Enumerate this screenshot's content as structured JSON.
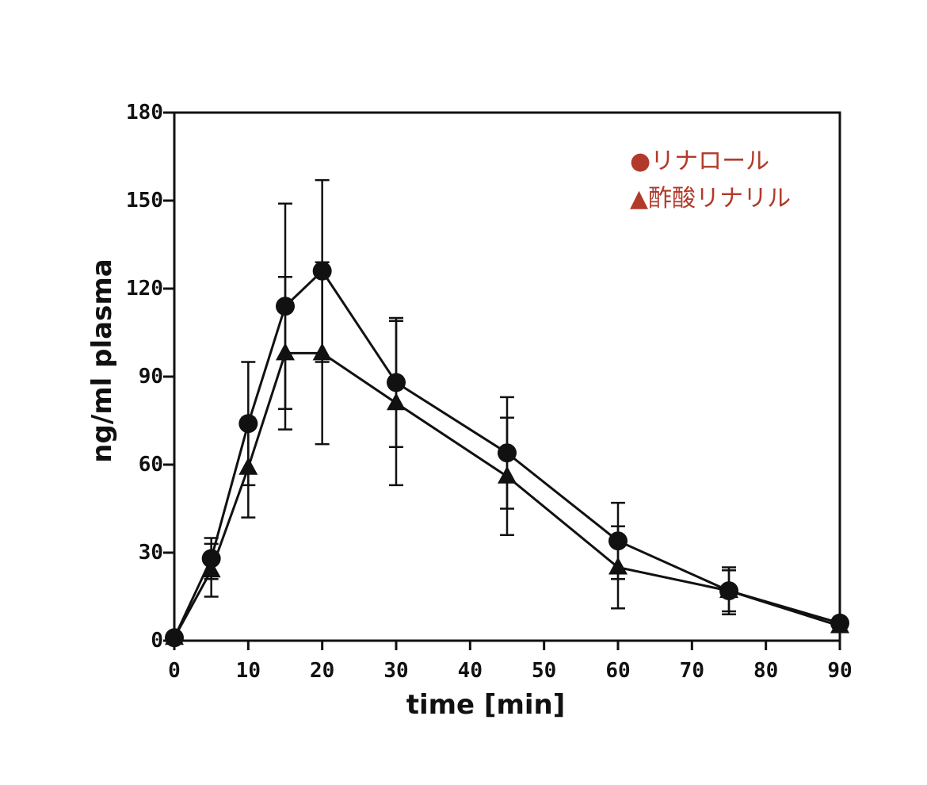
{
  "chart_data": {
    "type": "line",
    "title": "",
    "xlabel": "time [min]",
    "ylabel": "ng/ml plasma",
    "xlim": [
      0,
      90
    ],
    "ylim": [
      0,
      180
    ],
    "xticks": [
      0,
      10,
      20,
      30,
      40,
      50,
      60,
      70,
      80,
      90
    ],
    "yticks": [
      0,
      30,
      60,
      90,
      120,
      150,
      180
    ],
    "grid": false,
    "legend_position": "top-right",
    "legend_color": "#b23a2a",
    "series": [
      {
        "name": "リナロール",
        "legend_label": "●リナロール",
        "marker": "circle",
        "x": [
          0,
          5,
          10,
          15,
          20,
          30,
          45,
          60,
          75,
          90
        ],
        "y": [
          1,
          28,
          74,
          114,
          126,
          88,
          64,
          34,
          17,
          6
        ],
        "err": [
          0,
          7,
          21,
          35,
          31,
          22,
          19,
          13,
          8,
          0
        ]
      },
      {
        "name": "酢酸リナリル",
        "legend_label": "▲酢酸リナリル",
        "marker": "triangle",
        "x": [
          0,
          5,
          10,
          15,
          20,
          30,
          45,
          60,
          75,
          90
        ],
        "y": [
          1,
          24,
          59,
          98,
          98,
          81,
          56,
          25,
          17,
          5
        ],
        "err": [
          0,
          9,
          17,
          26,
          31,
          28,
          20,
          14,
          7,
          0
        ]
      }
    ]
  }
}
